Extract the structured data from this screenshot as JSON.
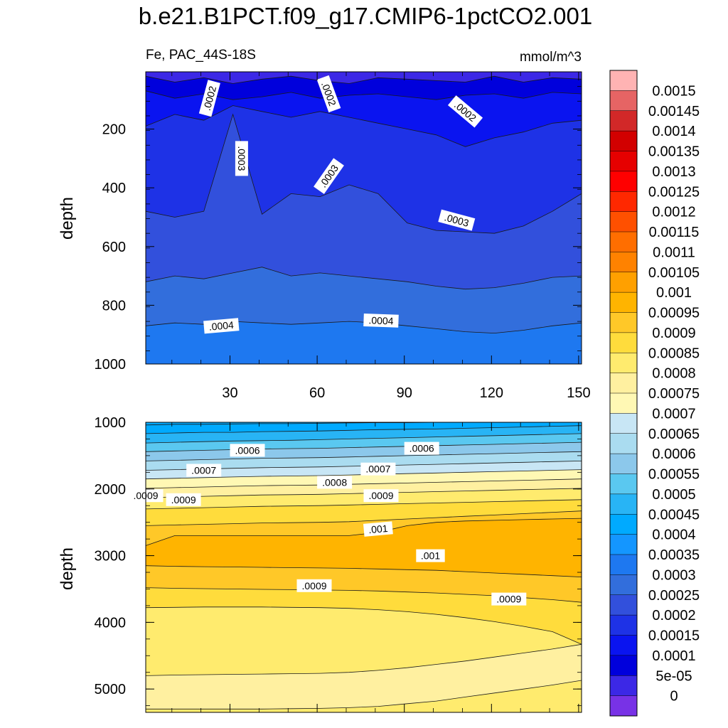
{
  "title": "b.e21.B1PCT.f09_g17.CMIP6-1pctCO2.001",
  "chart_data": [
    {
      "type": "heatmap",
      "panel": "upper",
      "left_label": "Fe, PAC_44S-18S",
      "right_label": "mmol/m^3",
      "ylabel": "depth",
      "xlim": [
        1,
        151
      ],
      "ylim": [
        1000,
        5
      ],
      "x_ticks": [
        30,
        60,
        90,
        120,
        150
      ],
      "y_ticks": [
        200,
        400,
        600,
        800,
        1000
      ],
      "contour_labels": [
        {
          "text": ".0002",
          "x": 23,
          "y": 95,
          "angle": -75
        },
        {
          "text": ".0002",
          "x": 64,
          "y": 80,
          "angle": 70
        },
        {
          "text": ".0002",
          "x": 111,
          "y": 140,
          "angle": 40
        },
        {
          "text": ".0003",
          "x": 34,
          "y": 300,
          "angle": 90
        },
        {
          "text": ".0003",
          "x": 64,
          "y": 360,
          "angle": -55
        },
        {
          "text": ".0003",
          "x": 108,
          "y": 510,
          "angle": 15
        },
        {
          "text": ".0004",
          "x": 27,
          "y": 870,
          "angle": -5
        },
        {
          "text": ".0004",
          "x": 82,
          "y": 852,
          "angle": 2
        }
      ],
      "contours": [
        {
          "level": 5e-05,
          "y": [
            5,
            5,
            5,
            5,
            5,
            5,
            5,
            5,
            5,
            5,
            5,
            5,
            5,
            5,
            5,
            5
          ]
        },
        {
          "level": 0.0001,
          "y": [
            20,
            40,
            25,
            45,
            30,
            20,
            35,
            45,
            25,
            30,
            35,
            40,
            20,
            40,
            25,
            30
          ]
        },
        {
          "level": 0.00015,
          "y": [
            70,
            95,
            80,
            100,
            90,
            75,
            95,
            85,
            80,
            90,
            100,
            85,
            80,
            95,
            75,
            80
          ]
        },
        {
          "level": 0.0002,
          "y": [
            190,
            150,
            170,
            120,
            140,
            160,
            140,
            160,
            180,
            200,
            220,
            260,
            230,
            210,
            180,
            170
          ]
        },
        {
          "level": 0.00025,
          "y": [
            480,
            500,
            480,
            150,
            490,
            420,
            430,
            390,
            420,
            520,
            545,
            550,
            555,
            530,
            480,
            420
          ]
        },
        {
          "level": 0.0003,
          "y": [
            720,
            700,
            710,
            690,
            670,
            700,
            690,
            700,
            710,
            720,
            735,
            745,
            740,
            725,
            705,
            700
          ]
        },
        {
          "level": 0.00035,
          "y": [
            870,
            860,
            865,
            855,
            860,
            865,
            860,
            855,
            860,
            870,
            880,
            890,
            895,
            885,
            870,
            860
          ]
        }
      ]
    },
    {
      "type": "heatmap",
      "panel": "lower",
      "ylabel": "depth",
      "xlim": [
        1,
        151
      ],
      "ylim": [
        5350,
        1000
      ],
      "y_ticks": [
        1000,
        2000,
        3000,
        4000,
        5000
      ],
      "contour_labels": [
        {
          "text": ".0006",
          "x": 36,
          "y": 1420,
          "angle": 0
        },
        {
          "text": ".0006",
          "x": 96,
          "y": 1390,
          "angle": 0
        },
        {
          "text": ".0007",
          "x": 21,
          "y": 1720,
          "angle": 0
        },
        {
          "text": ".0007",
          "x": 81,
          "y": 1700,
          "angle": 0
        },
        {
          "text": ".0008",
          "x": 66,
          "y": 1900,
          "angle": 0
        },
        {
          "text": ".0009",
          "x": 14,
          "y": 2160,
          "angle": 0
        },
        {
          "text": ".0009",
          "x": 1,
          "y": 2100,
          "angle": 0
        },
        {
          "text": ".0009",
          "x": 82,
          "y": 2100,
          "angle": 0
        },
        {
          "text": ".001",
          "x": 81,
          "y": 2600,
          "angle": -5
        },
        {
          "text": ".001",
          "x": 99,
          "y": 3000,
          "angle": 0
        },
        {
          "text": ".0009",
          "x": 59,
          "y": 3450,
          "angle": 0
        },
        {
          "text": ".0009",
          "x": 126,
          "y": 3650,
          "angle": 0
        }
      ],
      "contours": [
        {
          "level": 0.00045,
          "y": [
            1040,
            1030,
            1030,
            1025,
            1020,
            1020,
            1015,
            1010,
            1005,
            1005,
            1000,
            1000,
            1000,
            1000,
            1000,
            1000
          ]
        },
        {
          "level": 0.0005,
          "y": [
            1170,
            1160,
            1150,
            1150,
            1140,
            1135,
            1130,
            1120,
            1110,
            1105,
            1100,
            1090,
            1080,
            1070,
            1060,
            1050
          ]
        },
        {
          "level": 0.00055,
          "y": [
            1310,
            1300,
            1290,
            1280,
            1275,
            1270,
            1260,
            1250,
            1240,
            1230,
            1220,
            1210,
            1200,
            1190,
            1180,
            1170
          ]
        },
        {
          "level": 0.0006,
          "y": [
            1440,
            1430,
            1420,
            1410,
            1400,
            1395,
            1390,
            1380,
            1370,
            1360,
            1350,
            1340,
            1330,
            1320,
            1310,
            1300
          ]
        },
        {
          "level": 0.00065,
          "y": [
            1580,
            1570,
            1560,
            1550,
            1540,
            1535,
            1530,
            1520,
            1510,
            1500,
            1490,
            1480,
            1470,
            1460,
            1450,
            1440
          ]
        },
        {
          "level": 0.0007,
          "y": [
            1720,
            1710,
            1700,
            1690,
            1680,
            1675,
            1670,
            1660,
            1650,
            1640,
            1630,
            1620,
            1610,
            1600,
            1590,
            1580
          ]
        },
        {
          "level": 0.00075,
          "y": [
            1850,
            1840,
            1830,
            1820,
            1810,
            1805,
            1800,
            1790,
            1780,
            1770,
            1760,
            1750,
            1740,
            1730,
            1720,
            1710
          ]
        },
        {
          "level": 0.0008,
          "y": [
            1990,
            1980,
            1970,
            1960,
            1950,
            1945,
            1940,
            1930,
            1920,
            1910,
            1900,
            1890,
            1880,
            1870,
            1860,
            1850
          ]
        },
        {
          "level": 0.00085,
          "y": [
            2130,
            2120,
            2110,
            2100,
            2090,
            2085,
            2080,
            2070,
            2060,
            2050,
            2040,
            2030,
            2020,
            2010,
            2000,
            1990
          ]
        },
        {
          "level": 0.0009,
          "y": [
            2300,
            2290,
            2280,
            2270,
            2260,
            2255,
            2250,
            2240,
            2230,
            2220,
            2210,
            2200,
            2190,
            2180,
            2170,
            2160
          ]
        },
        {
          "level": 0.00095,
          "y": [
            2550,
            2540,
            2530,
            2520,
            2510,
            2505,
            2500,
            2490,
            2470,
            2450,
            2430,
            2410,
            2390,
            2370,
            2350,
            2330
          ]
        },
        {
          "level": 0.001,
          "y": [
            2850,
            2700,
            2700,
            2700,
            2700,
            2700,
            2700,
            2700,
            2650,
            2550,
            2500,
            2480,
            2470,
            2460,
            2450,
            2440
          ]
        },
        {
          "level": 0.00095,
          "y": [
            3150,
            3160,
            3165,
            3170,
            3175,
            3180,
            3185,
            3190,
            3200,
            3210,
            3220,
            3240,
            3260,
            3280,
            3300,
            3320
          ]
        },
        {
          "level": 0.0009,
          "y": [
            3480,
            3490,
            3495,
            3500,
            3505,
            3510,
            3515,
            3520,
            3530,
            3545,
            3560,
            3580,
            3600,
            3630,
            3660,
            3700
          ]
        },
        {
          "level": 0.00085,
          "y": [
            3780,
            3775,
            3770,
            3770,
            3770,
            3775,
            3780,
            3790,
            3810,
            3840,
            3880,
            3930,
            3990,
            4060,
            4140,
            4330
          ]
        },
        {
          "level": 0.0008,
          "y": [
            4800,
            4790,
            4785,
            4780,
            4775,
            4770,
            4765,
            4750,
            4720,
            4680,
            4630,
            4580,
            4520,
            4460,
            4400,
            4330
          ]
        },
        {
          "level": 0.00085,
          "y": [
            5300,
            5300,
            5300,
            5300,
            5300,
            5295,
            5290,
            5280,
            5260,
            5220,
            5180,
            5120,
            5060,
            5000,
            4940,
            4870
          ]
        }
      ]
    }
  ],
  "colorbar": {
    "labels": [
      "0.0015",
      "0.00145",
      "0.0014",
      "0.00135",
      "0.0013",
      "0.00125",
      "0.0012",
      "0.00115",
      "0.0011",
      "0.00105",
      "0.001",
      "0.00095",
      "0.0009",
      "0.00085",
      "0.0008",
      "0.00075",
      "0.0007",
      "0.00065",
      "0.0006",
      "0.00055",
      "0.0005",
      "0.00045",
      "0.0004",
      "0.00035",
      "0.0003",
      "0.00025",
      "0.0002",
      "0.00015",
      "0.0001",
      "5e-05",
      "0"
    ],
    "colors": [
      "#ffb3b3",
      "#e66464",
      "#d22828",
      "#d20000",
      "#e60000",
      "#ff0000",
      "#ff2800",
      "#ff5000",
      "#ff6e00",
      "#ff8200",
      "#ffa000",
      "#ffb400",
      "#ffc828",
      "#ffdc3c",
      "#ffeb6e",
      "#fff0a0",
      "#fff8b4",
      "#c8e6f5",
      "#aadcf0",
      "#8cc8eb",
      "#5ac8f0",
      "#28b4f5",
      "#00aaff",
      "#1496ff",
      "#1e78f0",
      "#326edc",
      "#3250dc",
      "#1e32e6",
      "#0a14f0",
      "#0000dc",
      "#3c28e6",
      "#7832e6"
    ]
  }
}
